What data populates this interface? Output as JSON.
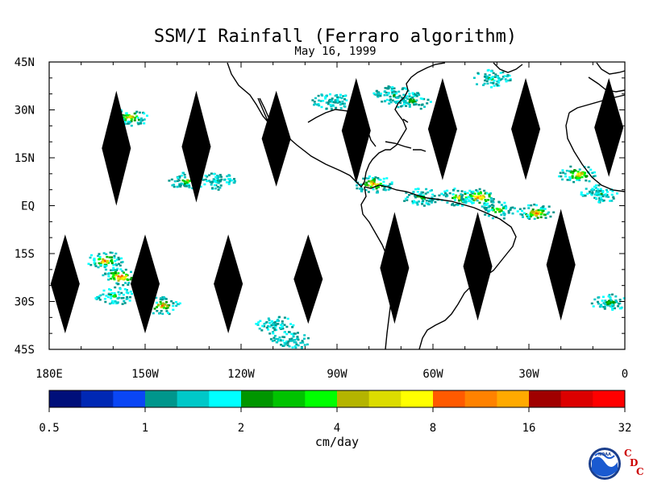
{
  "title": "SSM/I Rainfall (Ferraro algorithm)",
  "subtitle": "May 16, 1999",
  "map": {
    "lon_range": [
      -180,
      0
    ],
    "lat_range": [
      -45,
      45
    ],
    "lat_ticks": [
      {
        "value": 45,
        "label": "45N"
      },
      {
        "value": 30,
        "label": "30N"
      },
      {
        "value": 15,
        "label": "15N"
      },
      {
        "value": 0,
        "label": "EQ"
      },
      {
        "value": -15,
        "label": "15S"
      },
      {
        "value": -30,
        "label": "30S"
      },
      {
        "value": -45,
        "label": "45S"
      }
    ],
    "lon_ticks": [
      {
        "value": -180,
        "label": "180E"
      },
      {
        "value": -150,
        "label": "150W"
      },
      {
        "value": -120,
        "label": "120W"
      },
      {
        "value": -90,
        "label": "90W"
      },
      {
        "value": -60,
        "label": "60W"
      },
      {
        "value": -30,
        "label": "30W"
      },
      {
        "value": 0,
        "label": "0"
      }
    ],
    "data_gaps": [
      {
        "lon_center": -159,
        "lat_top": 36,
        "lat_bottom": 0
      },
      {
        "lon_center": -134,
        "lat_top": 36,
        "lat_bottom": 1
      },
      {
        "lon_center": -109,
        "lat_top": 36,
        "lat_bottom": 6
      },
      {
        "lon_center": -84,
        "lat_top": 40,
        "lat_bottom": 7
      },
      {
        "lon_center": -57,
        "lat_top": 40,
        "lat_bottom": 8
      },
      {
        "lon_center": -31,
        "lat_top": 40,
        "lat_bottom": 8
      },
      {
        "lon_center": -5,
        "lat_top": 40,
        "lat_bottom": 9
      },
      {
        "lon_center": -175,
        "lat_top": -9,
        "lat_bottom": -40
      },
      {
        "lon_center": -150,
        "lat_top": -9,
        "lat_bottom": -40
      },
      {
        "lon_center": -124,
        "lat_top": -9,
        "lat_bottom": -40
      },
      {
        "lon_center": -99,
        "lat_top": -9,
        "lat_bottom": -37
      },
      {
        "lon_center": -72,
        "lat_top": -2,
        "lat_bottom": -37
      },
      {
        "lon_center": -46,
        "lat_top": -2,
        "lat_bottom": -36
      },
      {
        "lon_center": -20,
        "lat_top": -1,
        "lat_bottom": -36
      }
    ],
    "rain_areas": [
      {
        "lon": -155,
        "lat": 28,
        "level": 12
      },
      {
        "lon": -163,
        "lat": -17,
        "level": 13
      },
      {
        "lon": -158,
        "lat": -22,
        "level": 14
      },
      {
        "lon": -160,
        "lat": -28,
        "level": 9
      },
      {
        "lon": -145,
        "lat": -31,
        "level": 12
      },
      {
        "lon": -137,
        "lat": 8,
        "level": 10
      },
      {
        "lon": -128,
        "lat": 8,
        "level": 7
      },
      {
        "lon": -110,
        "lat": -37,
        "level": 6
      },
      {
        "lon": -105,
        "lat": -42,
        "level": 5
      },
      {
        "lon": -92,
        "lat": 33,
        "level": 6
      },
      {
        "lon": -73,
        "lat": 35,
        "level": 8
      },
      {
        "lon": -67,
        "lat": 33,
        "level": 9
      },
      {
        "lon": -79,
        "lat": 7,
        "level": 13
      },
      {
        "lon": -64,
        "lat": 3,
        "level": 9
      },
      {
        "lon": -52,
        "lat": 3,
        "level": 12
      },
      {
        "lon": -46,
        "lat": 3,
        "level": 14
      },
      {
        "lon": -40,
        "lat": -1,
        "level": 11
      },
      {
        "lon": -28,
        "lat": -2,
        "level": 13
      },
      {
        "lon": -15,
        "lat": 10,
        "level": 13
      },
      {
        "lon": -42,
        "lat": 40,
        "level": 8
      },
      {
        "lon": -5,
        "lat": -30,
        "level": 9
      },
      {
        "lon": -8,
        "lat": 4,
        "level": 8
      }
    ]
  },
  "legend": {
    "colors": [
      "#000f7a",
      "#0028b4",
      "#0a46f5",
      "#00968c",
      "#00c8c8",
      "#00ffff",
      "#009600",
      "#00c300",
      "#00ff00",
      "#b4b400",
      "#dcdc00",
      "#ffff00",
      "#ff5a00",
      "#ff8200",
      "#ffaa00",
      "#a00000",
      "#dc0000",
      "#ff0000"
    ],
    "tick_labels": [
      "0.5",
      "1",
      "2",
      "4",
      "8",
      "16",
      "32"
    ],
    "unit_label": "cm/day"
  },
  "logo": {
    "noaa_text": "NOAA",
    "cdc_letters": [
      "C",
      "D",
      "C"
    ],
    "cdc_color": "#cc0000"
  }
}
